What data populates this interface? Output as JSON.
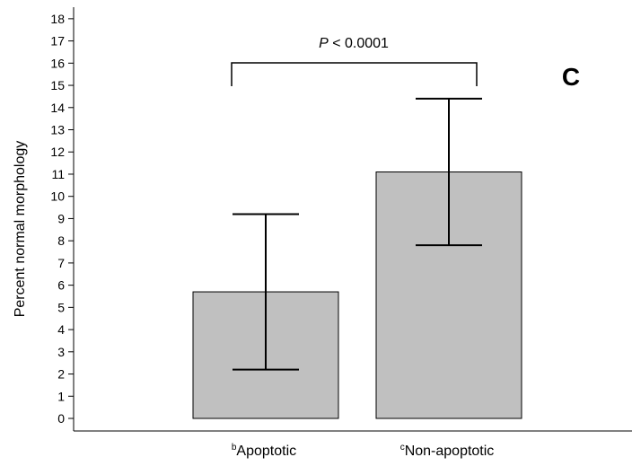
{
  "chart_data": {
    "type": "bar",
    "categories": [
      {
        "superscript": "b",
        "label": "Apoptotic"
      },
      {
        "superscript": "c",
        "label": "Non-apoptotic"
      }
    ],
    "values": [
      5.7,
      11.1
    ],
    "error_low": [
      2.2,
      7.8
    ],
    "error_high": [
      9.2,
      14.4
    ],
    "ylabel": "Percent normal morphology",
    "yticks": [
      0,
      1,
      2,
      3,
      4,
      5,
      6,
      7,
      8,
      9,
      10,
      11,
      12,
      13,
      14,
      15,
      16,
      17,
      18
    ],
    "ylim": [
      0,
      18.5
    ],
    "bar_color": "#c0c0c0",
    "annotation": {
      "italic": "P",
      "text": " < 0.0001"
    },
    "panel_label": "C",
    "grid": false
  }
}
